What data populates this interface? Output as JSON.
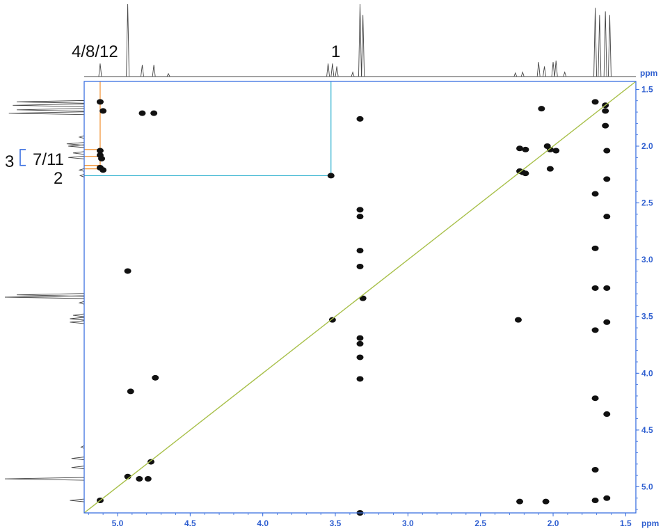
{
  "chart_data": {
    "type": "scatter",
    "title": "",
    "xlabel": "ppm",
    "ylabel": "ppm",
    "xlim": [
      5.23,
      1.43
    ],
    "ylim": [
      1.43,
      5.23
    ],
    "xticks": [
      {
        "v": 5.0,
        "t": "5.0"
      },
      {
        "v": 4.5,
        "t": "4.5"
      },
      {
        "v": 4.0,
        "t": "4.0"
      },
      {
        "v": 3.5,
        "t": "3.5"
      },
      {
        "v": 3.0,
        "t": "3.0"
      },
      {
        "v": 2.5,
        "t": "2.5"
      },
      {
        "v": 2.0,
        "t": "2.0"
      },
      {
        "v": 1.5,
        "t": "1.5"
      }
    ],
    "yticks": [
      {
        "v": 1.5,
        "t": "1.5"
      },
      {
        "v": 2.0,
        "t": "2.0"
      },
      {
        "v": 2.5,
        "t": "2.5"
      },
      {
        "v": 3.0,
        "t": "3.0"
      },
      {
        "v": 3.5,
        "t": "3.5"
      },
      {
        "v": 4.0,
        "t": "4.0"
      },
      {
        "v": 4.5,
        "t": "4.5"
      },
      {
        "v": 5.0,
        "t": "5.0"
      }
    ],
    "diagonal": {
      "color": "#a8c04a"
    },
    "assignments": [
      {
        "label": "4/8/12",
        "shift": 5.12
      },
      {
        "label": "1",
        "shift": 3.53
      },
      {
        "label": "3",
        "bracket": [
          2.03,
          2.17
        ]
      },
      {
        "label": "7/11",
        "shift": 2.09
      },
      {
        "label": "2",
        "shift": 2.26
      }
    ],
    "correlation_lines": [
      {
        "color": "#f08a24",
        "x": 5.12,
        "y": [
          1.43,
          2.2
        ]
      },
      {
        "color": "#f08a24",
        "x": 5.12,
        "y": [
          2.03
        ]
      },
      {
        "color": "#f08a24",
        "x": 5.12,
        "y": [
          2.09
        ]
      },
      {
        "color": "#f08a24",
        "x": 5.12,
        "y": [
          2.17
        ]
      },
      {
        "color": "#34b3d0",
        "x": 3.53,
        "y": [
          1.43,
          2.26
        ]
      }
    ],
    "cross_peaks": [
      {
        "x": 5.12,
        "y": 1.61
      },
      {
        "x": 5.1,
        "y": 1.69
      },
      {
        "x": 5.12,
        "y": 2.04
      },
      {
        "x": 5.12,
        "y": 2.08
      },
      {
        "x": 5.11,
        "y": 2.11
      },
      {
        "x": 5.12,
        "y": 2.19
      },
      {
        "x": 5.1,
        "y": 2.21
      },
      {
        "x": 4.83,
        "y": 1.71
      },
      {
        "x": 4.75,
        "y": 1.71
      },
      {
        "x": 3.53,
        "y": 2.26
      },
      {
        "x": 3.33,
        "y": 1.76
      },
      {
        "x": 3.33,
        "y": 2.56
      },
      {
        "x": 3.33,
        "y": 2.62
      },
      {
        "x": 3.33,
        "y": 2.92
      },
      {
        "x": 3.33,
        "y": 3.06
      },
      {
        "x": 3.31,
        "y": 3.34
      },
      {
        "x": 3.33,
        "y": 3.69
      },
      {
        "x": 3.33,
        "y": 3.74
      },
      {
        "x": 3.33,
        "y": 3.86
      },
      {
        "x": 3.33,
        "y": 4.05
      },
      {
        "x": 3.33,
        "y": 5.23
      },
      {
        "x": 2.23,
        "y": 2.02
      },
      {
        "x": 2.19,
        "y": 2.03
      },
      {
        "x": 2.23,
        "y": 2.22
      },
      {
        "x": 2.19,
        "y": 2.24
      },
      {
        "x": 2.24,
        "y": 3.53
      },
      {
        "x": 2.23,
        "y": 5.13
      },
      {
        "x": 2.05,
        "y": 5.13
      },
      {
        "x": 2.08,
        "y": 1.67
      },
      {
        "x": 2.04,
        "y": 2.0
      },
      {
        "x": 1.98,
        "y": 2.04
      },
      {
        "x": 2.02,
        "y": 2.2
      },
      {
        "x": 1.71,
        "y": 1.61
      },
      {
        "x": 1.71,
        "y": 2.42
      },
      {
        "x": 1.71,
        "y": 2.9
      },
      {
        "x": 1.71,
        "y": 3.25
      },
      {
        "x": 1.71,
        "y": 3.62
      },
      {
        "x": 1.71,
        "y": 4.22
      },
      {
        "x": 1.71,
        "y": 4.85
      },
      {
        "x": 1.71,
        "y": 5.12
      },
      {
        "x": 1.64,
        "y": 1.69
      },
      {
        "x": 1.64,
        "y": 1.82
      },
      {
        "x": 1.63,
        "y": 2.04
      },
      {
        "x": 1.63,
        "y": 2.29
      },
      {
        "x": 1.63,
        "y": 2.62
      },
      {
        "x": 1.63,
        "y": 3.25
      },
      {
        "x": 1.63,
        "y": 3.55
      },
      {
        "x": 1.63,
        "y": 4.36
      },
      {
        "x": 1.63,
        "y": 5.1
      },
      {
        "x": 4.93,
        "y": 3.1
      },
      {
        "x": 4.91,
        "y": 4.16
      },
      {
        "x": 4.74,
        "y": 4.04
      },
      {
        "x": 4.93,
        "y": 4.91
      },
      {
        "x": 4.85,
        "y": 4.93
      },
      {
        "x": 4.77,
        "y": 4.78
      },
      {
        "x": 4.79,
        "y": 4.93
      },
      {
        "x": 5.12,
        "y": 5.12
      },
      {
        "x": 3.52,
        "y": 3.53
      },
      {
        "x": 2.21,
        "y": 2.23
      },
      {
        "x": 2.02,
        "y": 2.03
      },
      {
        "x": 1.64,
        "y": 1.64
      }
    ],
    "projection": [
      {
        "shift": 5.12,
        "height": 0.18
      },
      {
        "shift": 4.93,
        "height": 1.0
      },
      {
        "shift": 4.83,
        "height": 0.16
      },
      {
        "shift": 4.75,
        "height": 0.16
      },
      {
        "shift": 4.65,
        "height": 0.04
      },
      {
        "shift": 3.55,
        "height": 0.18
      },
      {
        "shift": 3.52,
        "height": 0.18
      },
      {
        "shift": 3.49,
        "height": 0.14
      },
      {
        "shift": 3.38,
        "height": 0.06
      },
      {
        "shift": 3.33,
        "height": 1.0
      },
      {
        "shift": 3.31,
        "height": 0.85
      },
      {
        "shift": 2.26,
        "height": 0.05
      },
      {
        "shift": 2.21,
        "height": 0.06
      },
      {
        "shift": 2.1,
        "height": 0.2
      },
      {
        "shift": 2.06,
        "height": 0.14
      },
      {
        "shift": 2.0,
        "height": 0.2
      },
      {
        "shift": 1.98,
        "height": 0.22
      },
      {
        "shift": 1.92,
        "height": 0.06
      },
      {
        "shift": 1.71,
        "height": 0.95
      },
      {
        "shift": 1.68,
        "height": 0.85
      },
      {
        "shift": 1.64,
        "height": 0.9
      },
      {
        "shift": 1.61,
        "height": 0.85
      }
    ]
  }
}
